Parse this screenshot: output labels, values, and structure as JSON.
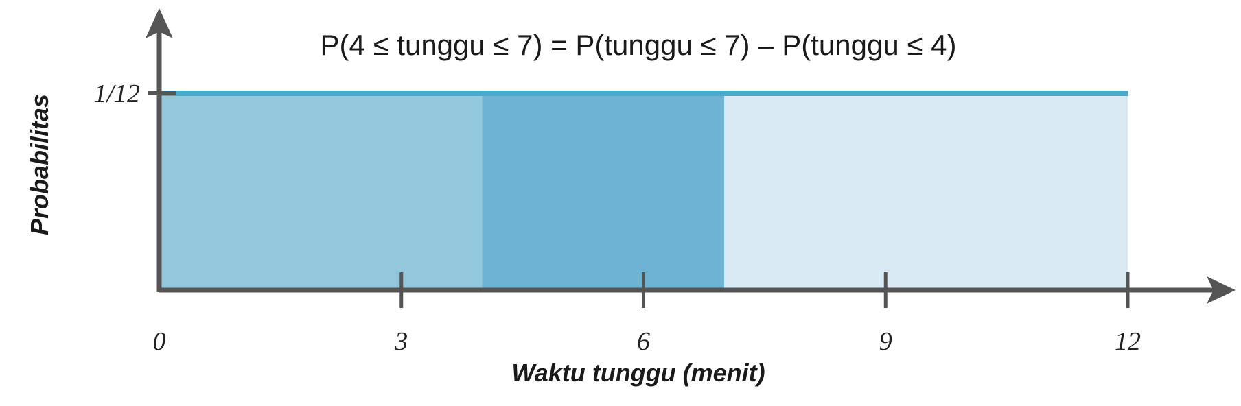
{
  "chart_data": {
    "type": "area",
    "title": "P(4 ≤ tunggu ≤ 7)  =  P(tunggu ≤ 7) – P(tunggu ≤ 4)",
    "xlabel": "Waktu tunggu (menit)",
    "ylabel": "Probabilitas",
    "xlim": [
      0,
      12
    ],
    "x_ticks": [
      0,
      3,
      6,
      9,
      12
    ],
    "x_tick_labels": [
      "0",
      "3",
      "6",
      "9",
      "12"
    ],
    "y_ticks": [
      {
        "value": 0.0833,
        "label": "1/12"
      }
    ],
    "density": {
      "x_start": 0,
      "x_end": 12,
      "value": 0.0833
    },
    "regions": [
      {
        "x_start": 0,
        "x_end": 4,
        "color": "#93c7dc"
      },
      {
        "x_start": 4,
        "x_end": 7,
        "color": "#6fb3d2"
      },
      {
        "x_start": 7,
        "x_end": 12,
        "color": "#d9eaf2"
      }
    ],
    "line_color": "#4aaacb",
    "axis_color": "#555555",
    "grid": false
  }
}
